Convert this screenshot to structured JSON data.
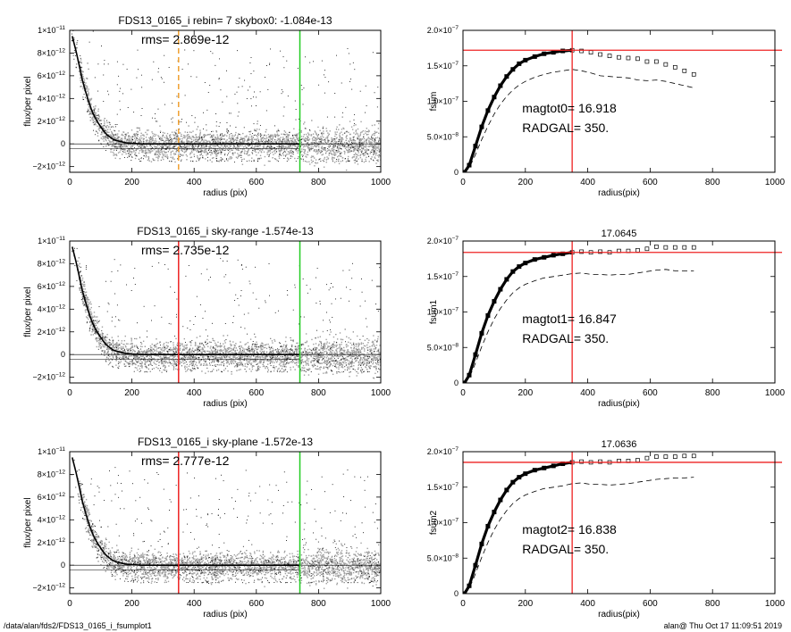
{
  "footer": {
    "left": "/data/alan/fds2/FDS13_0165_i_fsumplot1",
    "right": "alan@  Thu Oct 17 11:09:51 2019"
  },
  "colors": {
    "scatter_points": "#000000",
    "scatter_band": "#a0a0a0",
    "profile": "#000000",
    "limit_green": "#22cc22",
    "limit_red": "#ee2222",
    "limit_orange": "#f0a030",
    "fsum_points": "#000000",
    "fsum_dashed": "#000000"
  },
  "chart_data": [
    {
      "type": "scatter",
      "title": "FDS13_0165_i rebin= 7    skybox0: -1.084e-13",
      "annotation": "rms= 2.869e-12",
      "xlabel": "radius (pix)",
      "ylabel": "flux/per pixel",
      "xlim": [
        0,
        1000
      ],
      "ylim": [
        -2.5e-12,
        1e-11
      ],
      "x_ticks": [
        0,
        200,
        400,
        600,
        800,
        1000
      ],
      "y_ticks": [
        {
          "value": -2e-12,
          "mant": "−2×10",
          "exp": "−12"
        },
        {
          "value": 0,
          "mant": "0",
          "exp": ""
        },
        {
          "value": 2e-12,
          "mant": "2×10",
          "exp": "−12"
        },
        {
          "value": 4e-12,
          "mant": "4×10",
          "exp": "−12"
        },
        {
          "value": 6e-12,
          "mant": "6×10",
          "exp": "−12"
        },
        {
          "value": 8e-12,
          "mant": "8×10",
          "exp": "−12"
        },
        {
          "value": 1e-11,
          "mant": "1×10",
          "exp": "−11"
        }
      ],
      "vlines": [
        {
          "x": 350,
          "style": "orange-dashed"
        },
        {
          "x": 740,
          "style": "green"
        }
      ],
      "profile": {
        "x": [
          8,
          20,
          30,
          40,
          50,
          60,
          70,
          80,
          90,
          100,
          110,
          120,
          130,
          140,
          150,
          165,
          180,
          200,
          230,
          270,
          320,
          400,
          500,
          600,
          700,
          740
        ],
        "y": [
          9.5e-12,
          8.2e-12,
          7e-12,
          5.7e-12,
          4.7e-12,
          3.8e-12,
          3e-12,
          2.4e-12,
          1.9e-12,
          1.5e-12,
          1.1e-12,
          8e-13,
          6e-13,
          4e-13,
          3e-13,
          2e-13,
          1e-13,
          5e-14,
          0,
          0,
          0,
          0,
          0,
          0,
          0,
          0
        ]
      }
    },
    {
      "type": "scatter",
      "title": "FDS13_0165_i sky-range -1.574e-13",
      "annotation": "rms= 2.735e-12",
      "xlabel": "radius (pix)",
      "ylabel": "flux/per pixel",
      "xlim": [
        0,
        1000
      ],
      "ylim": [
        -2.5e-12,
        1e-11
      ],
      "x_ticks": [
        0,
        200,
        400,
        600,
        800,
        1000
      ],
      "y_ticks": [
        {
          "value": -2e-12,
          "mant": "−2×10",
          "exp": "−12"
        },
        {
          "value": 0,
          "mant": "0",
          "exp": ""
        },
        {
          "value": 2e-12,
          "mant": "2×10",
          "exp": "−12"
        },
        {
          "value": 4e-12,
          "mant": "4×10",
          "exp": "−12"
        },
        {
          "value": 6e-12,
          "mant": "6×10",
          "exp": "−12"
        },
        {
          "value": 8e-12,
          "mant": "8×10",
          "exp": "−12"
        },
        {
          "value": 1e-11,
          "mant": "1×10",
          "exp": "−11"
        }
      ],
      "vlines": [
        {
          "x": 350,
          "style": "red"
        },
        {
          "x": 740,
          "style": "green"
        }
      ],
      "profile": {
        "x": [
          8,
          20,
          30,
          40,
          50,
          60,
          70,
          80,
          90,
          100,
          110,
          120,
          130,
          140,
          150,
          165,
          180,
          200,
          230,
          270,
          320,
          400,
          500,
          600,
          700,
          740
        ],
        "y": [
          9.5e-12,
          8.2e-12,
          7e-12,
          5.7e-12,
          4.7e-12,
          3.8e-12,
          3e-12,
          2.4e-12,
          1.9e-12,
          1.5e-12,
          1.1e-12,
          8e-13,
          6e-13,
          4e-13,
          3e-13,
          2e-13,
          1e-13,
          5e-14,
          0,
          0,
          0,
          0,
          0,
          0,
          0,
          0
        ]
      }
    },
    {
      "type": "scatter",
      "title": "FDS13_0165_i sky-plane -1.572e-13",
      "annotation": "rms= 2.777e-12",
      "xlabel": "radius (pix)",
      "ylabel": "flux/per pixel",
      "xlim": [
        0,
        1000
      ],
      "ylim": [
        -2.5e-12,
        1e-11
      ],
      "x_ticks": [
        0,
        200,
        400,
        600,
        800,
        1000
      ],
      "y_ticks": [
        {
          "value": -2e-12,
          "mant": "−2×10",
          "exp": "−12"
        },
        {
          "value": 0,
          "mant": "0",
          "exp": ""
        },
        {
          "value": 2e-12,
          "mant": "2×10",
          "exp": "−12"
        },
        {
          "value": 4e-12,
          "mant": "4×10",
          "exp": "−12"
        },
        {
          "value": 6e-12,
          "mant": "6×10",
          "exp": "−12"
        },
        {
          "value": 8e-12,
          "mant": "8×10",
          "exp": "−12"
        },
        {
          "value": 1e-11,
          "mant": "1×10",
          "exp": "−11"
        }
      ],
      "vlines": [
        {
          "x": 350,
          "style": "red"
        },
        {
          "x": 740,
          "style": "green"
        }
      ],
      "profile": {
        "x": [
          8,
          20,
          30,
          40,
          50,
          60,
          70,
          80,
          90,
          100,
          110,
          120,
          130,
          140,
          150,
          165,
          180,
          200,
          230,
          270,
          320,
          400,
          500,
          600,
          700,
          740
        ],
        "y": [
          9.5e-12,
          8.2e-12,
          7e-12,
          5.7e-12,
          4.7e-12,
          3.8e-12,
          3e-12,
          2.4e-12,
          1.9e-12,
          1.5e-12,
          1.1e-12,
          8e-13,
          6e-13,
          4e-13,
          3e-13,
          2e-13,
          1e-13,
          5e-14,
          0,
          0,
          0,
          0,
          0,
          0,
          0,
          0
        ]
      }
    },
    {
      "type": "line",
      "title": "",
      "xlabel": "radius(pix)",
      "ylabel": "fsum",
      "xlim": [
        0,
        1000
      ],
      "ylim": [
        0,
        2e-07
      ],
      "x_ticks": [
        0,
        200,
        400,
        600,
        800,
        1000
      ],
      "y_ticks": [
        {
          "value": 0,
          "mant": "0",
          "exp": ""
        },
        {
          "value": 5e-08,
          "mant": "5.0×10",
          "exp": "−8"
        },
        {
          "value": 1e-07,
          "mant": "1.0×10",
          "exp": "−7"
        },
        {
          "value": 1.5e-07,
          "mant": "1.5×10",
          "exp": "−7"
        },
        {
          "value": 2e-07,
          "mant": "2.0×10",
          "exp": "−7"
        }
      ],
      "annotations": [
        "magtot0=  16.918",
        "RADGAL=    350."
      ],
      "hline": 1.72e-07,
      "vline": 350,
      "series": [
        {
          "style": "points",
          "x": [
            5,
            20,
            40,
            60,
            80,
            100,
            120,
            140,
            160,
            180,
            200,
            230,
            260,
            290,
            320,
            350,
            380,
            410,
            440,
            470,
            500,
            530,
            560,
            590,
            620,
            650,
            680,
            710,
            740
          ],
          "y": [
            0,
            1e-08,
            3.7e-08,
            6.4e-08,
            8.7e-08,
            1.06e-07,
            1.22e-07,
            1.35e-07,
            1.45e-07,
            1.53e-07,
            1.58e-07,
            1.63e-07,
            1.67e-07,
            1.69e-07,
            1.71e-07,
            1.72e-07,
            1.71e-07,
            1.69e-07,
            1.66e-07,
            1.64e-07,
            1.62e-07,
            1.61e-07,
            1.6e-07,
            1.56e-07,
            1.56e-07,
            1.52e-07,
            1.48e-07,
            1.43e-07,
            1.38e-07
          ]
        },
        {
          "style": "dashed",
          "x": [
            5,
            20,
            40,
            60,
            80,
            100,
            120,
            140,
            160,
            180,
            200,
            230,
            260,
            290,
            320,
            350,
            380,
            410,
            440,
            470,
            500,
            530,
            560,
            590,
            620,
            650,
            680,
            710,
            740
          ],
          "y": [
            0,
            6e-09,
            2.5e-08,
            4.6e-08,
            6.5e-08,
            8.2e-08,
            9.6e-08,
            1.07e-07,
            1.16e-07,
            1.23e-07,
            1.28e-07,
            1.34e-07,
            1.38e-07,
            1.41e-07,
            1.43e-07,
            1.45e-07,
            1.43e-07,
            1.4e-07,
            1.36e-07,
            1.35e-07,
            1.34e-07,
            1.33e-07,
            1.3e-07,
            1.29e-07,
            1.3e-07,
            1.28e-07,
            1.25e-07,
            1.22e-07,
            1.19e-07
          ]
        }
      ]
    },
    {
      "type": "line",
      "title": "17.0645",
      "xlabel": "radius(pix)",
      "ylabel": "fsum1",
      "xlim": [
        0,
        1000
      ],
      "ylim": [
        0,
        2e-07
      ],
      "x_ticks": [
        0,
        200,
        400,
        600,
        800,
        1000
      ],
      "y_ticks": [
        {
          "value": 0,
          "mant": "0",
          "exp": ""
        },
        {
          "value": 5e-08,
          "mant": "5.0×10",
          "exp": "−8"
        },
        {
          "value": 1e-07,
          "mant": "1.0×10",
          "exp": "−7"
        },
        {
          "value": 1.5e-07,
          "mant": "1.5×10",
          "exp": "−7"
        },
        {
          "value": 2e-07,
          "mant": "2.0×10",
          "exp": "−7"
        }
      ],
      "annotations": [
        "magtot1=  16.847",
        "RADGAL=    350."
      ],
      "hline": 1.84e-07,
      "vline": 350,
      "series": [
        {
          "style": "points",
          "x": [
            5,
            20,
            40,
            60,
            80,
            100,
            120,
            140,
            160,
            180,
            200,
            230,
            260,
            290,
            320,
            350,
            380,
            410,
            440,
            470,
            500,
            530,
            560,
            590,
            620,
            650,
            680,
            710,
            740
          ],
          "y": [
            0,
            1.1e-08,
            4e-08,
            7e-08,
            9.5e-08,
            1.15e-07,
            1.32e-07,
            1.46e-07,
            1.57e-07,
            1.64e-07,
            1.69e-07,
            1.74e-07,
            1.77e-07,
            1.8e-07,
            1.82e-07,
            1.84e-07,
            1.85e-07,
            1.84e-07,
            1.85e-07,
            1.84e-07,
            1.86e-07,
            1.86e-07,
            1.87e-07,
            1.89e-07,
            1.92e-07,
            1.91e-07,
            1.91e-07,
            1.91e-07,
            1.91e-07
          ]
        },
        {
          "style": "dashed",
          "x": [
            5,
            20,
            40,
            60,
            80,
            100,
            120,
            140,
            160,
            180,
            200,
            230,
            260,
            290,
            320,
            350,
            380,
            410,
            440,
            470,
            500,
            530,
            560,
            590,
            620,
            650,
            680,
            710,
            740
          ],
          "y": [
            0,
            7e-09,
            2.8e-08,
            5.1e-08,
            7.2e-08,
            9e-08,
            1.05e-07,
            1.17e-07,
            1.27e-07,
            1.34e-07,
            1.39e-07,
            1.44e-07,
            1.48e-07,
            1.5e-07,
            1.52e-07,
            1.54e-07,
            1.55e-07,
            1.53e-07,
            1.53e-07,
            1.52e-07,
            1.53e-07,
            1.53e-07,
            1.55e-07,
            1.57e-07,
            1.59e-07,
            1.6e-07,
            1.58e-07,
            1.58e-07,
            1.58e-07
          ]
        }
      ]
    },
    {
      "type": "line",
      "title": "17.0636",
      "xlabel": "radius(pix)",
      "ylabel": "fsum2",
      "xlim": [
        0,
        1000
      ],
      "ylim": [
        0,
        2e-07
      ],
      "x_ticks": [
        0,
        200,
        400,
        600,
        800,
        1000
      ],
      "y_ticks": [
        {
          "value": 0,
          "mant": "0",
          "exp": ""
        },
        {
          "value": 5e-08,
          "mant": "5.0×10",
          "exp": "−8"
        },
        {
          "value": 1e-07,
          "mant": "1.0×10",
          "exp": "−7"
        },
        {
          "value": 1.5e-07,
          "mant": "1.5×10",
          "exp": "−7"
        },
        {
          "value": 2e-07,
          "mant": "2.0×10",
          "exp": "−7"
        }
      ],
      "annotations": [
        "magtot2=  16.838",
        "RADGAL=    350."
      ],
      "hline": 1.85e-07,
      "vline": 350,
      "series": [
        {
          "style": "points",
          "x": [
            5,
            20,
            40,
            60,
            80,
            100,
            120,
            140,
            160,
            180,
            200,
            230,
            260,
            290,
            320,
            350,
            380,
            410,
            440,
            470,
            500,
            530,
            560,
            590,
            620,
            650,
            680,
            710,
            740
          ],
          "y": [
            0,
            1.1e-08,
            4e-08,
            7e-08,
            9.5e-08,
            1.15e-07,
            1.32e-07,
            1.46e-07,
            1.57e-07,
            1.64e-07,
            1.69e-07,
            1.74e-07,
            1.77e-07,
            1.8e-07,
            1.83e-07,
            1.85e-07,
            1.86e-07,
            1.85e-07,
            1.86e-07,
            1.85e-07,
            1.87e-07,
            1.87e-07,
            1.88e-07,
            1.91e-07,
            1.93e-07,
            1.93e-07,
            1.93e-07,
            1.94e-07,
            1.94e-07
          ]
        },
        {
          "style": "dashed",
          "x": [
            5,
            20,
            40,
            60,
            80,
            100,
            120,
            140,
            160,
            180,
            200,
            230,
            260,
            290,
            320,
            350,
            380,
            410,
            440,
            470,
            500,
            530,
            560,
            590,
            620,
            650,
            680,
            710,
            740
          ],
          "y": [
            0,
            7e-09,
            2.8e-08,
            5.1e-08,
            7.2e-08,
            9e-08,
            1.05e-07,
            1.17e-07,
            1.27e-07,
            1.34e-07,
            1.39e-07,
            1.44e-07,
            1.48e-07,
            1.5e-07,
            1.52e-07,
            1.55e-07,
            1.56e-07,
            1.54e-07,
            1.54e-07,
            1.53e-07,
            1.54e-07,
            1.55e-07,
            1.57e-07,
            1.59e-07,
            1.61e-07,
            1.62e-07,
            1.63e-07,
            1.63e-07,
            1.64e-07
          ]
        }
      ]
    }
  ]
}
